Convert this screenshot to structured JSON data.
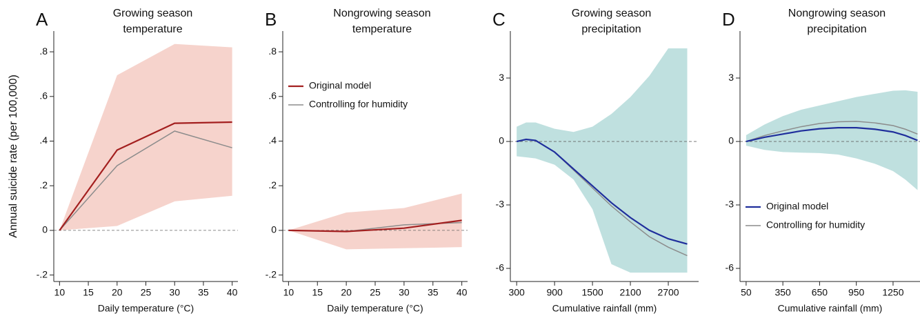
{
  "chart_data": [
    {
      "type": "line",
      "letter": "A",
      "title": [
        "Growing season",
        "temperature"
      ],
      "ylabel": "Annual suicide rate (per 100,000)",
      "xlabel": "Daily temperature (°C)",
      "x": [
        10,
        20,
        30,
        40
      ],
      "series": [
        {
          "name": "Original model",
          "color": "#a31f1f",
          "values": [
            0,
            0.36,
            0.48,
            0.485
          ]
        },
        {
          "name": "Controlling for humidity",
          "color": "#8c8c8c",
          "values": [
            0,
            0.29,
            0.445,
            0.37
          ]
        }
      ],
      "band": {
        "color": "#f6d3cc",
        "upper": [
          0,
          0.695,
          0.835,
          0.82
        ],
        "lower": [
          0,
          0.02,
          0.13,
          0.155
        ]
      },
      "reference_line": 0,
      "xlim": [
        9,
        41
      ],
      "xticks": [
        10,
        15,
        20,
        25,
        30,
        35,
        40
      ],
      "ylim": [
        -0.229,
        0.893
      ],
      "yticks": [
        {
          "value": -0.2,
          "label": "-.2"
        },
        0,
        {
          "value": 0.2,
          "label": ".2"
        },
        {
          "value": 0.4,
          "label": ".4"
        },
        {
          "value": 0.6,
          "label": ".6"
        },
        {
          "value": 0.8,
          "label": ".8"
        }
      ]
    },
    {
      "type": "line",
      "letter": "B",
      "title": [
        "Nongrowing season",
        "temperature"
      ],
      "xlabel": "Daily temperature (°C)",
      "legend": "upper left",
      "x": [
        10,
        20,
        30,
        40
      ],
      "series": [
        {
          "name": "Original model",
          "color": "#a31f1f",
          "values": [
            0,
            -0.005,
            0.01,
            0.045
          ]
        },
        {
          "name": "Controlling for humidity",
          "color": "#8c8c8c",
          "values": [
            0,
            -0.005,
            0.025,
            0.035
          ]
        }
      ],
      "band": {
        "color": "#f6d3cc",
        "upper": [
          0,
          0.08,
          0.1,
          0.165
        ],
        "lower": [
          0,
          -0.085,
          -0.08,
          -0.075
        ]
      },
      "reference_line": 0,
      "xlim": [
        9,
        41
      ],
      "xticks": [
        10,
        15,
        20,
        25,
        30,
        35,
        40
      ],
      "ylim": [
        -0.229,
        0.893
      ],
      "yticks": [
        {
          "value": -0.2,
          "label": "-.2"
        },
        0,
        {
          "value": 0.2,
          "label": ".2"
        },
        {
          "value": 0.4,
          "label": ".4"
        },
        {
          "value": 0.6,
          "label": ".6"
        },
        {
          "value": 0.8,
          "label": ".8"
        }
      ]
    },
    {
      "type": "line",
      "letter": "C",
      "title": [
        "Growing season",
        "precipitation"
      ],
      "xlabel": "Cumulative rainfall (mm)",
      "x": [
        300,
        450,
        600,
        900,
        1200,
        1500,
        1800,
        2100,
        2400,
        2700,
        3000
      ],
      "series": [
        {
          "name": "Original model",
          "color": "#1f2e9c",
          "values": [
            0,
            0.1,
            0.05,
            -0.5,
            -1.3,
            -2.1,
            -2.9,
            -3.6,
            -4.2,
            -4.6,
            -4.85
          ]
        },
        {
          "name": "Controlling for humidity",
          "color": "#8c8c8c",
          "values": [
            0,
            0.1,
            0.05,
            -0.5,
            -1.35,
            -2.2,
            -3.05,
            -3.8,
            -4.5,
            -5.0,
            -5.4
          ]
        }
      ],
      "band": {
        "color": "#bfe0df",
        "upper": [
          0.7,
          0.9,
          0.9,
          0.6,
          0.45,
          0.7,
          1.3,
          2.1,
          3.1,
          4.4,
          4.4
        ],
        "lower": [
          -0.7,
          -0.75,
          -0.8,
          -1.1,
          -1.8,
          -3.2,
          -5.8,
          -6.2,
          -6.2,
          -6.2,
          -6.2
        ]
      },
      "reference_line": 0,
      "xlim": [
        200,
        3180
      ],
      "xticks": [
        300,
        900,
        1500,
        2100,
        2700
      ],
      "ylim": [
        -6.62,
        5.22
      ],
      "yticks": [
        -6,
        -3,
        0,
        3
      ]
    },
    {
      "type": "line",
      "letter": "D",
      "title": [
        "Nongrowing season",
        "precipitation"
      ],
      "xlabel": "Cumulative rainfall (mm)",
      "legend": "lower left",
      "x": [
        50,
        200,
        350,
        500,
        650,
        800,
        950,
        1100,
        1250,
        1350,
        1450
      ],
      "series": [
        {
          "name": "Original model",
          "color": "#1f2e9c",
          "values": [
            0,
            0.2,
            0.35,
            0.5,
            0.6,
            0.65,
            0.65,
            0.58,
            0.45,
            0.28,
            0.05
          ]
        },
        {
          "name": "Controlling for humidity",
          "color": "#8c8c8c",
          "values": [
            0,
            0.28,
            0.5,
            0.7,
            0.85,
            0.93,
            0.95,
            0.88,
            0.75,
            0.58,
            0.35
          ]
        }
      ],
      "band": {
        "color": "#bfe0df",
        "upper": [
          0.3,
          0.8,
          1.2,
          1.5,
          1.7,
          1.9,
          2.1,
          2.25,
          2.4,
          2.42,
          2.35
        ],
        "lower": [
          -0.2,
          -0.4,
          -0.5,
          -0.53,
          -0.55,
          -0.62,
          -0.8,
          -1.05,
          -1.4,
          -1.8,
          -2.3
        ]
      },
      "reference_line": 0,
      "xlim": [
        0,
        1470
      ],
      "xticks": [
        50,
        350,
        650,
        950,
        1250
      ],
      "ylim": [
        -6.62,
        5.22
      ],
      "yticks": [
        -6,
        -3,
        0,
        3
      ]
    }
  ]
}
